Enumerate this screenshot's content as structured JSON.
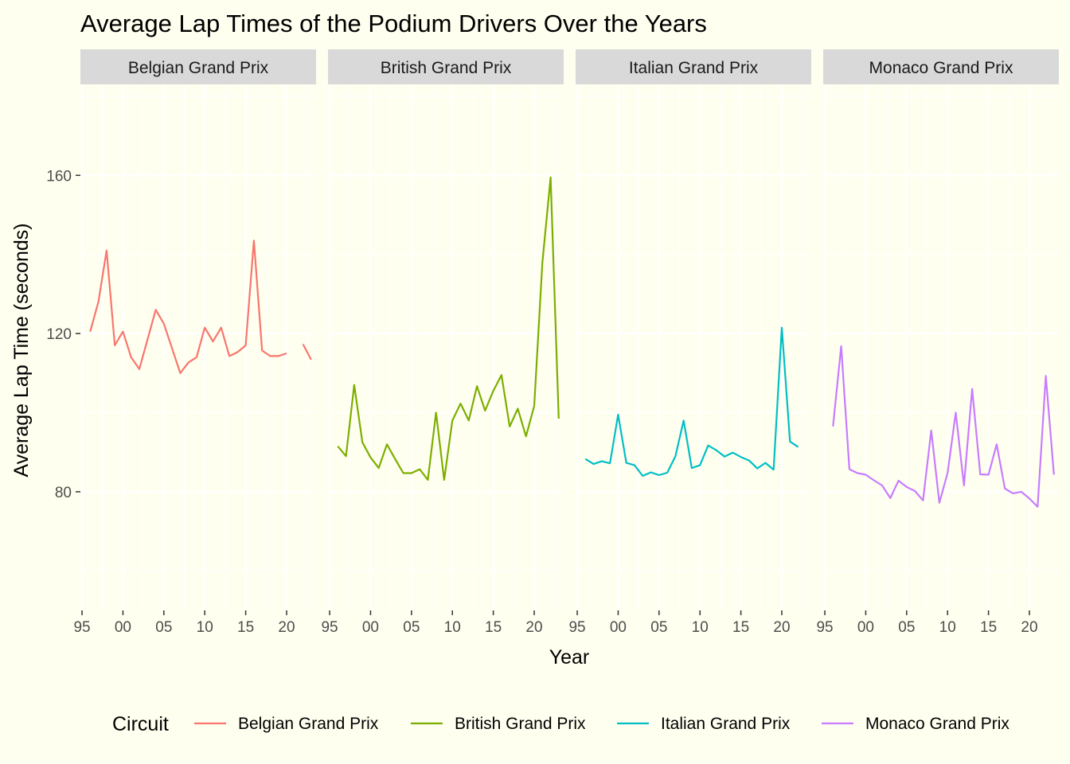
{
  "chart_data": {
    "type": "line",
    "title": "Average Lap Times of the Podium Drivers Over the Years",
    "xlabel": "Year",
    "ylabel": "Average Lap Time (seconds)",
    "xlim": [
      1994.8,
      2023.6
    ],
    "ylim": [
      50,
      183
    ],
    "y_ticks": [
      80,
      120,
      160
    ],
    "x_ticks": [
      1995,
      2000,
      2005,
      2010,
      2015,
      2020
    ],
    "x_tick_labels": [
      "95",
      "00",
      "05",
      "10",
      "15",
      "20"
    ],
    "grid": true,
    "legend": {
      "title": "Circuit",
      "position": "bottom"
    },
    "facets": [
      {
        "name": "Belgian Grand Prix",
        "color": "#F8766D",
        "points": [
          [
            1996,
            120.5
          ],
          [
            1997,
            128
          ],
          [
            1998,
            141
          ],
          [
            1999,
            117
          ],
          [
            2000,
            120.5
          ],
          [
            2001,
            114
          ],
          [
            2002,
            111
          ],
          [
            2004,
            126
          ],
          [
            2005,
            122.5
          ],
          [
            2007,
            110
          ],
          [
            2008,
            112.7
          ],
          [
            2009,
            114
          ],
          [
            2010,
            121.5
          ],
          [
            2011,
            118
          ],
          [
            2012,
            121.5
          ],
          [
            2013,
            114.3
          ],
          [
            2014,
            115.3
          ],
          [
            2015,
            117
          ],
          [
            2016,
            143.5
          ],
          [
            2017,
            115.7
          ],
          [
            2018,
            114.3
          ],
          [
            2019,
            114.3
          ],
          [
            2020,
            115
          ],
          null,
          [
            2022,
            117.3
          ],
          [
            2023,
            113.4
          ]
        ]
      },
      {
        "name": "British Grand Prix",
        "color": "#7CAE00",
        "points": [
          [
            1996,
            91.5
          ],
          [
            1997,
            89
          ],
          [
            1998,
            107
          ],
          [
            1999,
            92.5
          ],
          [
            2000,
            88.7
          ],
          [
            2001,
            86
          ],
          [
            2002,
            92
          ],
          [
            2003,
            88.3
          ],
          [
            2004,
            84.7
          ],
          [
            2005,
            84.7
          ],
          [
            2006,
            85.7
          ],
          [
            2007,
            83
          ],
          [
            2008,
            100
          ],
          [
            2009,
            83
          ],
          [
            2010,
            98
          ],
          [
            2011,
            102.3
          ],
          [
            2012,
            98
          ],
          [
            2013,
            106.7
          ],
          [
            2014,
            100.5
          ],
          [
            2015,
            105.5
          ],
          [
            2016,
            109.5
          ],
          [
            2017,
            96.5
          ],
          [
            2018,
            101
          ],
          [
            2019,
            94
          ],
          [
            2020,
            101.7
          ],
          [
            2021,
            138
          ],
          [
            2022,
            159.5
          ],
          [
            2023,
            98.5
          ]
        ]
      },
      {
        "name": "Italian Grand Prix",
        "color": "#00BFC4",
        "points": [
          [
            1996,
            88.3
          ],
          [
            1997,
            87
          ],
          [
            1998,
            87.7
          ],
          [
            1999,
            87.2
          ],
          [
            2000,
            99.5
          ],
          [
            2001,
            87.3
          ],
          [
            2002,
            86.7
          ],
          [
            2003,
            84
          ],
          [
            2004,
            84.9
          ],
          [
            2005,
            84.2
          ],
          [
            2006,
            84.8
          ],
          [
            2007,
            89
          ],
          [
            2008,
            98
          ],
          [
            2009,
            86
          ],
          [
            2010,
            86.7
          ],
          [
            2011,
            91.7
          ],
          [
            2012,
            90.5
          ],
          [
            2013,
            88.9
          ],
          [
            2014,
            89.9
          ],
          [
            2015,
            88.8
          ],
          [
            2016,
            87.9
          ],
          [
            2017,
            85.9
          ],
          [
            2018,
            87.3
          ],
          [
            2019,
            85.6
          ],
          [
            2020,
            121.5
          ],
          [
            2021,
            92.7
          ],
          [
            2022,
            91.3
          ]
        ]
      },
      {
        "name": "Monaco Grand Prix",
        "color": "#C77CFF",
        "points": [
          [
            1996,
            96.5
          ],
          [
            1997,
            116.8
          ],
          [
            1998,
            85.7
          ],
          [
            1999,
            84.7
          ],
          [
            2000,
            84.3
          ],
          [
            2001,
            82.9
          ],
          [
            2002,
            81.6
          ],
          [
            2003,
            78.4
          ],
          [
            2004,
            82.8
          ],
          [
            2005,
            81.2
          ],
          [
            2006,
            80.2
          ],
          [
            2007,
            77.8
          ],
          [
            2008,
            95.5
          ],
          [
            2009,
            77.2
          ],
          [
            2010,
            84.7
          ],
          [
            2011,
            100
          ],
          [
            2012,
            81.6
          ],
          [
            2013,
            106
          ],
          [
            2014,
            84.4
          ],
          [
            2015,
            84.3
          ],
          [
            2016,
            92
          ],
          [
            2017,
            80.8
          ],
          [
            2018,
            79.6
          ],
          [
            2019,
            80
          ],
          [
            2020,
            78.3
          ],
          [
            2021,
            76.2
          ],
          [
            2022,
            109.3
          ],
          [
            2023,
            84.3
          ]
        ]
      }
    ]
  }
}
